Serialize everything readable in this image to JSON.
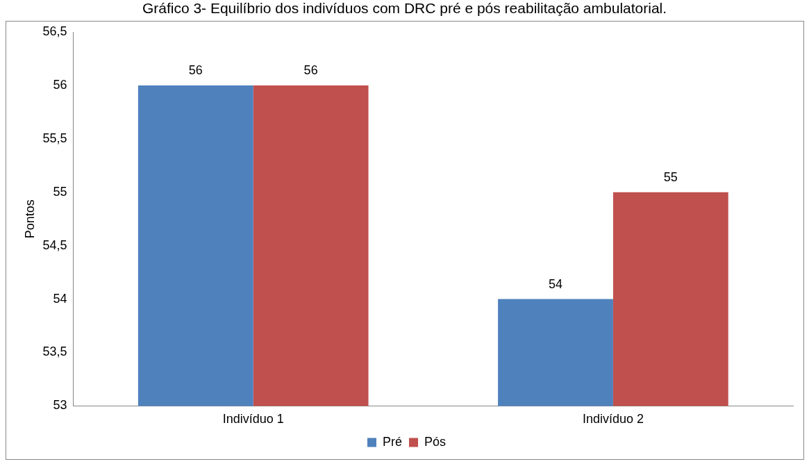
{
  "chart_data": {
    "type": "bar",
    "title": "Gráfico 3- Equilíbrio dos indivíduos com DRC pré e pós reabilitação ambulatorial.",
    "ylabel": "Pontos",
    "categories": [
      "Indivíduo 1",
      "Indivíduo 2"
    ],
    "series": [
      {
        "name": "Pré",
        "color": "#4f81bd",
        "values": [
          56,
          54
        ]
      },
      {
        "name": "Pós",
        "color": "#c0504d",
        "values": [
          56,
          55
        ]
      }
    ],
    "ylim": [
      53,
      56.5
    ],
    "yticks": [
      {
        "value": 53,
        "label": "53"
      },
      {
        "value": 53.5,
        "label": "53,5"
      },
      {
        "value": 54,
        "label": "54"
      },
      {
        "value": 54.5,
        "label": "54,5"
      },
      {
        "value": 55,
        "label": "55"
      },
      {
        "value": 55.5,
        "label": "55,5"
      },
      {
        "value": 56,
        "label": "56"
      },
      {
        "value": 56.5,
        "label": "56,5"
      }
    ],
    "grid": false,
    "legend": "bottom",
    "data_labels": true
  }
}
